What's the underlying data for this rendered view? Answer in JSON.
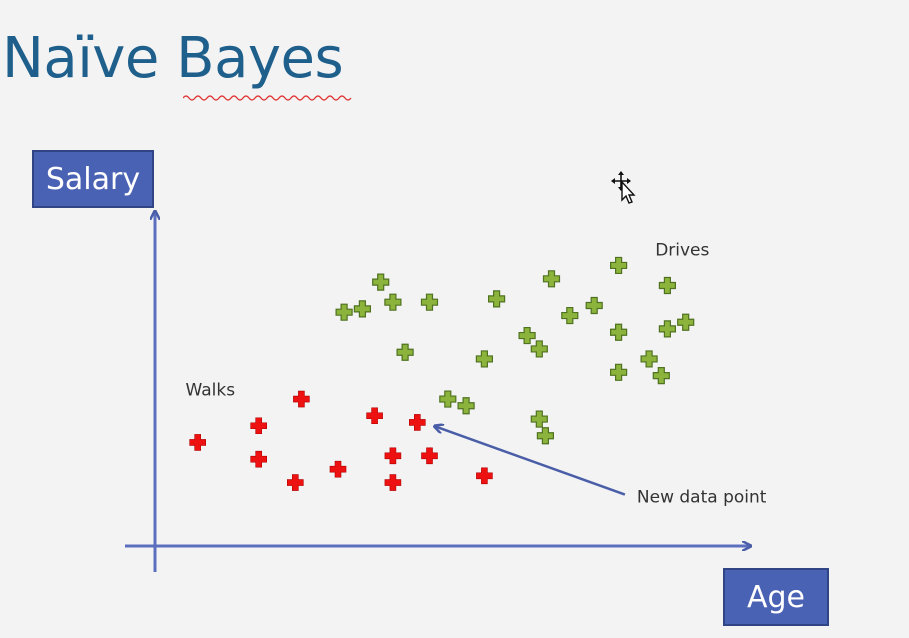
{
  "slide": {
    "title": "Naïve Bayes"
  },
  "chart_data": {
    "type": "scatter",
    "title": "",
    "xlabel": "Age",
    "ylabel": "Salary",
    "xlim": [
      0,
      100
    ],
    "ylim": [
      0,
      100
    ],
    "grid": false,
    "series": [
      {
        "name": "Walks",
        "color": "#ee1111",
        "marker": "plus",
        "points": [
          [
            7,
            31
          ],
          [
            17,
            36
          ],
          [
            17,
            26
          ],
          [
            23,
            19
          ],
          [
            24,
            44
          ],
          [
            30,
            23
          ],
          [
            36,
            39
          ],
          [
            39,
            27
          ],
          [
            39,
            19
          ],
          [
            43,
            37
          ],
          [
            45,
            27
          ],
          [
            54,
            21
          ]
        ]
      },
      {
        "name": "Drives",
        "color": "#8cb43c",
        "marker": "plus",
        "points": [
          [
            31,
            70
          ],
          [
            34,
            71
          ],
          [
            37,
            79
          ],
          [
            39,
            73
          ],
          [
            41,
            58
          ],
          [
            45,
            73
          ],
          [
            48,
            44
          ],
          [
            51,
            42
          ],
          [
            54,
            56
          ],
          [
            56,
            74
          ],
          [
            61,
            63
          ],
          [
            63,
            59
          ],
          [
            63,
            38
          ],
          [
            64,
            33
          ],
          [
            65,
            80
          ],
          [
            68,
            69
          ],
          [
            72,
            72
          ],
          [
            76,
            84
          ],
          [
            76,
            64
          ],
          [
            76,
            52
          ],
          [
            81,
            56
          ],
          [
            83,
            51
          ],
          [
            84,
            78
          ],
          [
            84,
            65
          ],
          [
            87,
            67
          ]
        ]
      }
    ],
    "annotations": [
      {
        "text": "Walks",
        "at": [
          5,
          45
        ]
      },
      {
        "text": "Drives",
        "at": [
          82,
          87
        ]
      },
      {
        "text": "New data point",
        "at": [
          79,
          13
        ],
        "arrow_to": [
          43,
          37
        ]
      }
    ]
  }
}
